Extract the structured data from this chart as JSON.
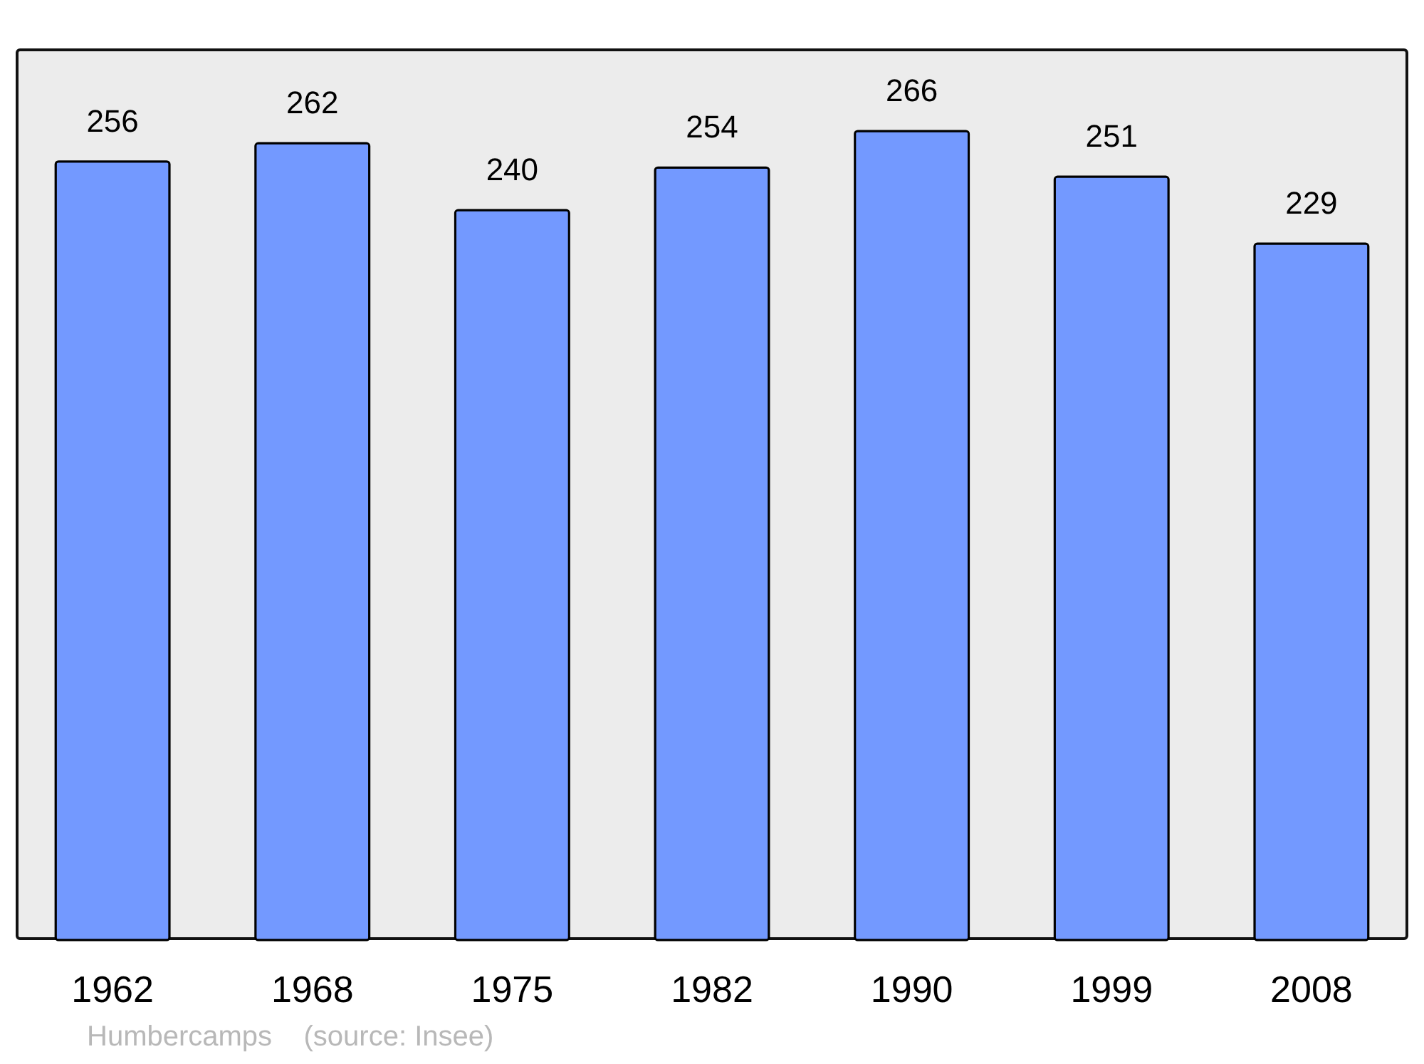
{
  "chart_data": {
    "type": "bar",
    "categories": [
      "1962",
      "1968",
      "1975",
      "1982",
      "1990",
      "1999",
      "2008"
    ],
    "values": [
      256,
      262,
      240,
      254,
      266,
      251,
      229
    ],
    "color": "#7399ff",
    "data_labels": true,
    "grid": false,
    "annotations": [
      "Humbercamps    (source: Insee)"
    ]
  }
}
